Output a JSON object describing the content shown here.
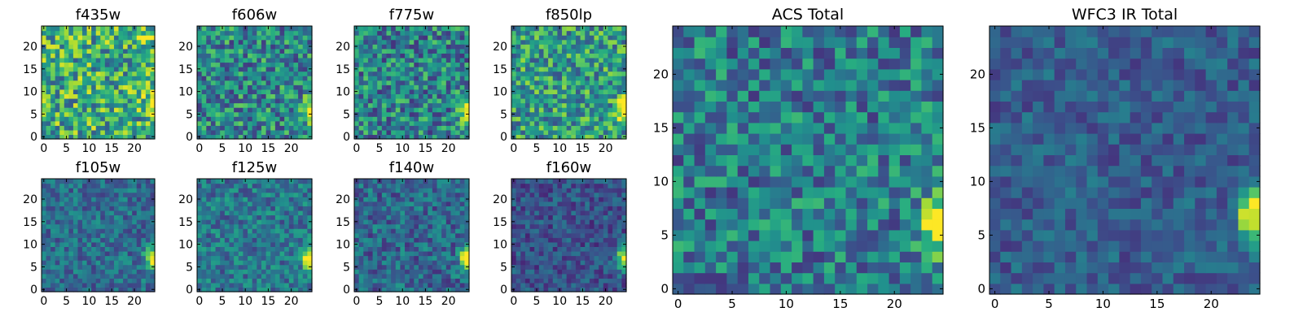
{
  "chart_data": [
    {
      "type": "heatmap",
      "title": "f435w",
      "xticks": [
        "0",
        "5",
        "10",
        "15",
        "20"
      ],
      "yticks": [
        "0",
        "5",
        "10",
        "15",
        "20"
      ],
      "grid_size": [
        25,
        25
      ],
      "colormap": "viridis",
      "seed": 11,
      "base": 0.62,
      "noise": 0.34,
      "source": {
        "x": 24,
        "y": 7,
        "amp": 0.5
      },
      "bright_corner": true
    },
    {
      "type": "heatmap",
      "title": "f606w",
      "xticks": [
        "0",
        "5",
        "10",
        "15",
        "20"
      ],
      "yticks": [
        "0",
        "5",
        "10",
        "15",
        "20"
      ],
      "grid_size": [
        25,
        25
      ],
      "colormap": "viridis",
      "seed": 23,
      "base": 0.47,
      "noise": 0.3,
      "source": {
        "x": 24,
        "y": 6,
        "amp": 0.65
      }
    },
    {
      "type": "heatmap",
      "title": "f775w",
      "xticks": [
        "0",
        "5",
        "10",
        "15",
        "20"
      ],
      "yticks": [
        "0",
        "5",
        "10",
        "15",
        "20"
      ],
      "grid_size": [
        25,
        25
      ],
      "colormap": "viridis",
      "seed": 37,
      "base": 0.45,
      "noise": 0.3,
      "source": {
        "x": 24,
        "y": 6,
        "amp": 0.7
      }
    },
    {
      "type": "heatmap",
      "title": "f850lp",
      "xticks": [
        "0",
        "5",
        "10",
        "15",
        "20"
      ],
      "yticks": [
        "0",
        "5",
        "10",
        "15",
        "20"
      ],
      "grid_size": [
        25,
        25
      ],
      "colormap": "viridis",
      "seed": 41,
      "base": 0.55,
      "noise": 0.3,
      "source": {
        "x": 24,
        "y": 6,
        "amp": 0.65
      }
    },
    {
      "type": "heatmap",
      "title": "f105w",
      "xticks": [
        "0",
        "5",
        "10",
        "15",
        "20"
      ],
      "yticks": [
        "0",
        "5",
        "10",
        "15",
        "20"
      ],
      "grid_size": [
        25,
        25
      ],
      "colormap": "viridis",
      "seed": 53,
      "base": 0.36,
      "noise": 0.18,
      "source": {
        "x": 24,
        "y": 7,
        "amp": 0.7
      }
    },
    {
      "type": "heatmap",
      "title": "f125w",
      "xticks": [
        "0",
        "5",
        "10",
        "15",
        "20"
      ],
      "yticks": [
        "0",
        "5",
        "10",
        "15",
        "20"
      ],
      "grid_size": [
        25,
        25
      ],
      "colormap": "viridis",
      "seed": 61,
      "base": 0.4,
      "noise": 0.2,
      "source": {
        "x": 24,
        "y": 7,
        "amp": 0.65
      }
    },
    {
      "type": "heatmap",
      "title": "f140w",
      "xticks": [
        "0",
        "5",
        "10",
        "15",
        "20"
      ],
      "yticks": [
        "0",
        "5",
        "10",
        "15",
        "20"
      ],
      "grid_size": [
        25,
        25
      ],
      "colormap": "viridis",
      "seed": 73,
      "base": 0.34,
      "noise": 0.2,
      "source": {
        "x": 24,
        "y": 7,
        "amp": 0.7
      }
    },
    {
      "type": "heatmap",
      "title": "f160w",
      "xticks": [
        "0",
        "5",
        "10",
        "15",
        "20"
      ],
      "yticks": [
        "0",
        "5",
        "10",
        "15",
        "20"
      ],
      "grid_size": [
        25,
        25
      ],
      "colormap": "viridis",
      "seed": 89,
      "base": 0.26,
      "noise": 0.16,
      "source": {
        "x": 24,
        "y": 7,
        "amp": 0.75
      }
    },
    {
      "type": "heatmap",
      "title": "ACS Total",
      "xticks": [
        "0",
        "5",
        "10",
        "15",
        "20"
      ],
      "yticks": [
        "0",
        "5",
        "10",
        "15",
        "20"
      ],
      "grid_size": [
        25,
        25
      ],
      "colormap": "viridis",
      "seed": 97,
      "base": 0.42,
      "noise": 0.26,
      "source": {
        "x": 24,
        "y": 6,
        "amp": 0.72
      }
    },
    {
      "type": "heatmap",
      "title": "WFC3 IR Total",
      "xticks": [
        "0",
        "5",
        "10",
        "15",
        "20"
      ],
      "yticks": [
        "0",
        "5",
        "10",
        "15",
        "20"
      ],
      "grid_size": [
        25,
        25
      ],
      "colormap": "viridis",
      "seed": 101,
      "base": 0.3,
      "noise": 0.14,
      "source": {
        "x": 24,
        "y": 7,
        "amp": 0.75
      }
    }
  ]
}
